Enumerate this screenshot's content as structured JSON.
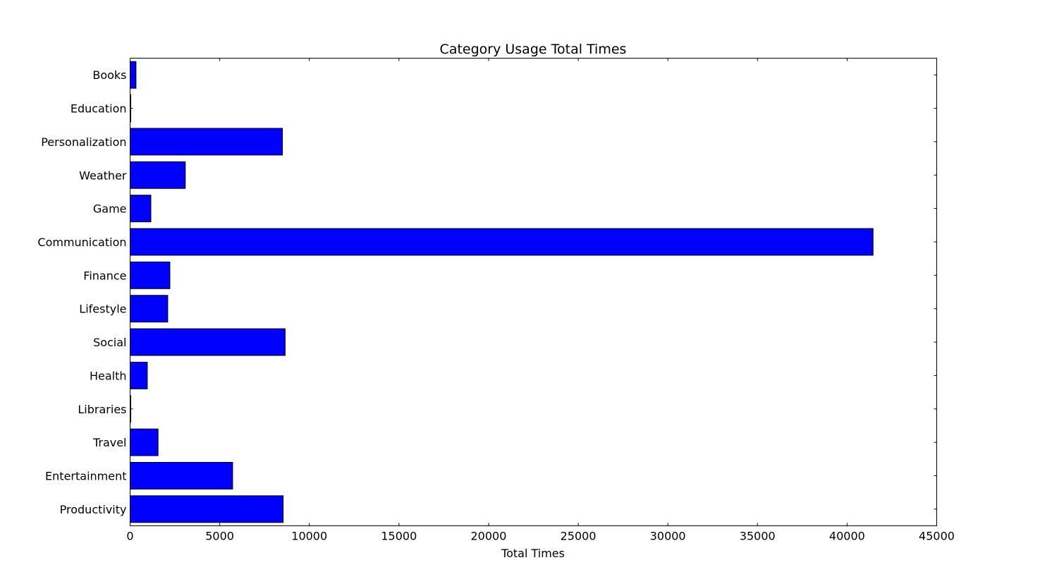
{
  "chart_data": {
    "type": "bar",
    "orientation": "horizontal",
    "title": "Category Usage Total Times",
    "xlabel": "Total Times",
    "ylabel": "",
    "xlim": [
      0,
      45000
    ],
    "xticks": [
      0,
      5000,
      10000,
      15000,
      20000,
      25000,
      30000,
      35000,
      40000,
      45000
    ],
    "xtick_labels": [
      "0",
      "5000",
      "10000",
      "15000",
      "20000",
      "25000",
      "30000",
      "35000",
      "40000",
      "45000"
    ],
    "categories": [
      "Books",
      "Education",
      "Personalization",
      "Weather",
      "Game",
      "Communication",
      "Finance",
      "Lifestyle",
      "Social",
      "Health",
      "Libraries",
      "Travel",
      "Entertainment",
      "Productivity"
    ],
    "values": [
      330,
      40,
      8500,
      3080,
      1160,
      41450,
      2220,
      2100,
      8650,
      960,
      40,
      1560,
      5720,
      8540
    ],
    "bar_color": "#0000ff",
    "edge_color": "#000000",
    "grid": false,
    "legend": "none"
  }
}
